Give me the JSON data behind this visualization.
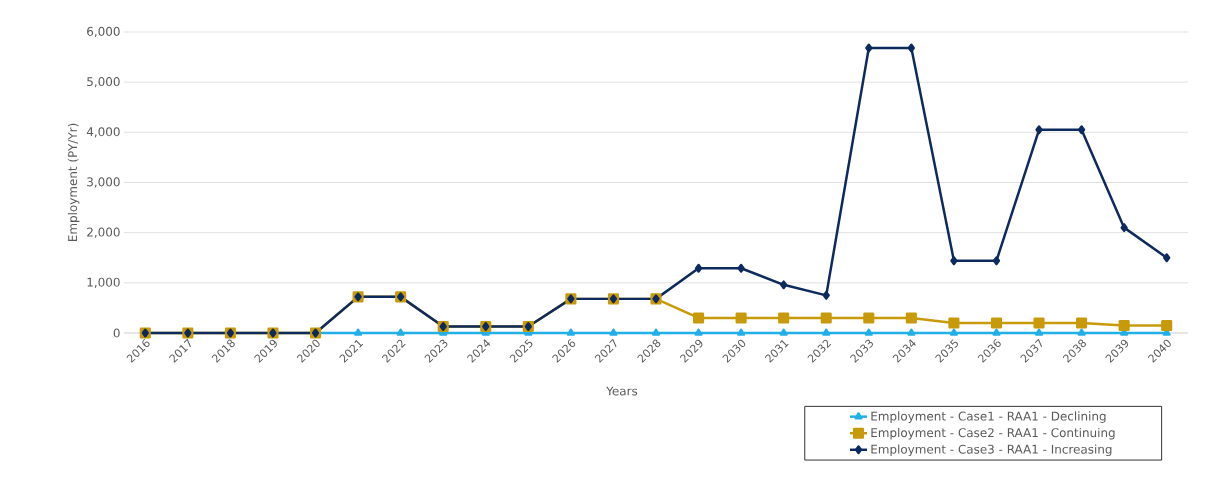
{
  "chart_data": {
    "type": "line",
    "xlabel": "Years",
    "ylabel": "Employment (PY/Yr)",
    "categories": [
      "2016",
      "2017",
      "2018",
      "2019",
      "2020",
      "2021",
      "2022",
      "2023",
      "2024",
      "2025",
      "2026",
      "2027",
      "2028",
      "2029",
      "2030",
      "2031",
      "2032",
      "2033",
      "2034",
      "2035",
      "2036",
      "2037",
      "2038",
      "2039",
      "2040"
    ],
    "series": [
      {
        "name": "Employment - Case1 - RAA1 - Declining",
        "color": "#22aee6",
        "marker": "triangle",
        "values": [
          null,
          null,
          null,
          null,
          0,
          0,
          0,
          0,
          0,
          0,
          0,
          0,
          0,
          0,
          0,
          0,
          0,
          0,
          0,
          0,
          0,
          0,
          0,
          0,
          0
        ]
      },
      {
        "name": "Employment - Case2 - RAA1 - Continuing",
        "color": "#c89a0a",
        "marker": "square",
        "values": [
          0,
          0,
          0,
          0,
          0,
          720,
          720,
          130,
          130,
          130,
          680,
          680,
          680,
          300,
          300,
          300,
          300,
          300,
          300,
          200,
          200,
          200,
          200,
          150,
          150
        ]
      },
      {
        "name": "Employment - Case3 - RAA1 - Increasing",
        "color": "#0d2a5f",
        "marker": "diamond",
        "values": [
          0,
          0,
          0,
          0,
          0,
          720,
          720,
          130,
          130,
          130,
          680,
          680,
          680,
          1290,
          1290,
          960,
          750,
          5680,
          5680,
          1440,
          1440,
          4050,
          4050,
          2100,
          1500
        ]
      }
    ],
    "ylim": [
      0,
      6000
    ],
    "yticks": [
      {
        "value": 0,
        "label": "0"
      },
      {
        "value": 1000,
        "label": "1,000"
      },
      {
        "value": 2000,
        "label": "2,000"
      },
      {
        "value": 3000,
        "label": "3,000"
      },
      {
        "value": 4000,
        "label": "4,000"
      },
      {
        "value": 5000,
        "label": "5,000"
      },
      {
        "value": 6000,
        "label": "6,000"
      }
    ],
    "grid": "y",
    "legend": "bottom right",
    "line_style": "solid"
  }
}
